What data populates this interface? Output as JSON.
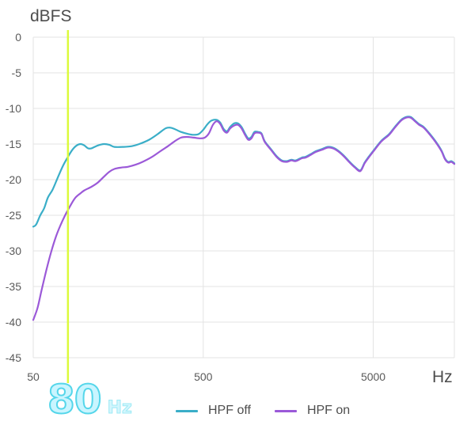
{
  "chart_data": {
    "type": "line",
    "ylabel": "dBFS",
    "xlabel": "Hz",
    "x_scale": "log",
    "xlim": [
      50,
      15000
    ],
    "ylim": [
      -45,
      0
    ],
    "x_ticks": [
      50,
      500,
      5000
    ],
    "x_tick_labels": [
      "50",
      "500",
      "5000"
    ],
    "y_ticks": [
      0,
      -5,
      -10,
      -15,
      -20,
      -25,
      -30,
      -35,
      -40,
      -45
    ],
    "y_tick_labels": [
      "0",
      "-5",
      "-10",
      "-15",
      "-20",
      "-25",
      "-30",
      "-35",
      "-40",
      "-45"
    ],
    "grid": true,
    "legend_position": "bottom",
    "marker": {
      "value": 80,
      "label": "80",
      "unit": "Hz",
      "color": "#dcfb3b"
    },
    "series": [
      {
        "name": "HPF off",
        "color": "#3aaec8",
        "points": [
          [
            50,
            -26.6
          ],
          [
            52,
            -26.3
          ],
          [
            55,
            -25
          ],
          [
            58,
            -24
          ],
          [
            61,
            -22.5
          ],
          [
            65,
            -21.4
          ],
          [
            70,
            -19.6
          ],
          [
            75,
            -18
          ],
          [
            80,
            -16.8
          ],
          [
            85,
            -15.8
          ],
          [
            90,
            -15.2
          ],
          [
            95,
            -15
          ],
          [
            100,
            -15.2
          ],
          [
            105,
            -15.6
          ],
          [
            110,
            -15.6
          ],
          [
            120,
            -15.2
          ],
          [
            130,
            -15
          ],
          [
            140,
            -15.1
          ],
          [
            150,
            -15.4
          ],
          [
            170,
            -15.4
          ],
          [
            190,
            -15.3
          ],
          [
            210,
            -15
          ],
          [
            240,
            -14.4
          ],
          [
            270,
            -13.6
          ],
          [
            300,
            -12.8
          ],
          [
            320,
            -12.7
          ],
          [
            340,
            -12.9
          ],
          [
            370,
            -13.3
          ],
          [
            410,
            -13.6
          ],
          [
            440,
            -13.7
          ],
          [
            470,
            -13.6
          ],
          [
            500,
            -13
          ],
          [
            530,
            -12.2
          ],
          [
            560,
            -11.7
          ],
          [
            600,
            -11.6
          ],
          [
            630,
            -12
          ],
          [
            660,
            -12.9
          ],
          [
            690,
            -13.2
          ],
          [
            720,
            -12.6
          ],
          [
            760,
            -12.1
          ],
          [
            800,
            -12.1
          ],
          [
            840,
            -12.6
          ],
          [
            880,
            -13.5
          ],
          [
            920,
            -14.2
          ],
          [
            960,
            -14
          ],
          [
            1000,
            -13.3
          ],
          [
            1050,
            -13.3
          ],
          [
            1100,
            -13.5
          ],
          [
            1150,
            -14.6
          ],
          [
            1250,
            -15.7
          ],
          [
            1350,
            -16.7
          ],
          [
            1450,
            -17.3
          ],
          [
            1550,
            -17.4
          ],
          [
            1650,
            -17.2
          ],
          [
            1750,
            -17.3
          ],
          [
            1900,
            -16.9
          ],
          [
            2000,
            -16.8
          ],
          [
            2150,
            -16.4
          ],
          [
            2300,
            -16
          ],
          [
            2500,
            -15.7
          ],
          [
            2700,
            -15.4
          ],
          [
            2900,
            -15.5
          ],
          [
            3100,
            -15.9
          ],
          [
            3350,
            -16.6
          ],
          [
            3600,
            -17.4
          ],
          [
            3900,
            -18.2
          ],
          [
            4200,
            -18.7
          ],
          [
            4450,
            -17.6
          ],
          [
            4700,
            -16.8
          ],
          [
            5100,
            -15.7
          ],
          [
            5600,
            -14.5
          ],
          [
            6200,
            -13.6
          ],
          [
            6700,
            -12.6
          ],
          [
            7300,
            -11.6
          ],
          [
            7800,
            -11.2
          ],
          [
            8300,
            -11.2
          ],
          [
            8800,
            -11.7
          ],
          [
            9300,
            -12.2
          ],
          [
            9900,
            -12.6
          ],
          [
            10700,
            -13.5
          ],
          [
            11700,
            -14.7
          ],
          [
            12600,
            -15.9
          ],
          [
            13200,
            -17
          ],
          [
            13800,
            -17.5
          ],
          [
            14400,
            -17.4
          ],
          [
            15000,
            -17.7
          ]
        ]
      },
      {
        "name": "HPF on",
        "color": "#9b59d8",
        "points": [
          [
            50,
            -39.7
          ],
          [
            53,
            -38
          ],
          [
            56,
            -35.5
          ],
          [
            60,
            -32.5
          ],
          [
            64,
            -30
          ],
          [
            68,
            -28
          ],
          [
            72,
            -26.5
          ],
          [
            77,
            -25
          ],
          [
            82,
            -23.8
          ],
          [
            88,
            -22.6
          ],
          [
            95,
            -21.9
          ],
          [
            100,
            -21.5
          ],
          [
            110,
            -21
          ],
          [
            120,
            -20.4
          ],
          [
            130,
            -19.6
          ],
          [
            140,
            -18.9
          ],
          [
            150,
            -18.5
          ],
          [
            165,
            -18.3
          ],
          [
            180,
            -18.2
          ],
          [
            200,
            -17.9
          ],
          [
            220,
            -17.5
          ],
          [
            250,
            -16.8
          ],
          [
            280,
            -16
          ],
          [
            310,
            -15.3
          ],
          [
            340,
            -14.6
          ],
          [
            370,
            -14.1
          ],
          [
            400,
            -14
          ],
          [
            440,
            -14.1
          ],
          [
            480,
            -14.2
          ],
          [
            510,
            -14.1
          ],
          [
            540,
            -13.5
          ],
          [
            570,
            -12.3
          ],
          [
            600,
            -11.8
          ],
          [
            630,
            -12.2
          ],
          [
            660,
            -13.1
          ],
          [
            690,
            -13.4
          ],
          [
            720,
            -12.8
          ],
          [
            760,
            -12.4
          ],
          [
            800,
            -12.3
          ],
          [
            840,
            -12.8
          ],
          [
            880,
            -13.7
          ],
          [
            920,
            -14.4
          ],
          [
            960,
            -14.2
          ],
          [
            1000,
            -13.5
          ],
          [
            1050,
            -13.4
          ],
          [
            1100,
            -13.6
          ],
          [
            1150,
            -14.7
          ],
          [
            1250,
            -15.8
          ],
          [
            1350,
            -16.8
          ],
          [
            1450,
            -17.4
          ],
          [
            1550,
            -17.5
          ],
          [
            1650,
            -17.3
          ],
          [
            1750,
            -17.4
          ],
          [
            1900,
            -17
          ],
          [
            2000,
            -16.9
          ],
          [
            2150,
            -16.5
          ],
          [
            2300,
            -16.1
          ],
          [
            2500,
            -15.8
          ],
          [
            2700,
            -15.5
          ],
          [
            2900,
            -15.6
          ],
          [
            3100,
            -16
          ],
          [
            3350,
            -16.7
          ],
          [
            3600,
            -17.5
          ],
          [
            3900,
            -18.3
          ],
          [
            4200,
            -18.8
          ],
          [
            4450,
            -17.7
          ],
          [
            4700,
            -16.9
          ],
          [
            5100,
            -15.8
          ],
          [
            5600,
            -14.6
          ],
          [
            6200,
            -13.7
          ],
          [
            6700,
            -12.7
          ],
          [
            7300,
            -11.7
          ],
          [
            7800,
            -11.3
          ],
          [
            8300,
            -11.3
          ],
          [
            8800,
            -11.8
          ],
          [
            9300,
            -12.3
          ],
          [
            9900,
            -12.7
          ],
          [
            10700,
            -13.6
          ],
          [
            11700,
            -14.8
          ],
          [
            12600,
            -16
          ],
          [
            13200,
            -17.1
          ],
          [
            13800,
            -17.6
          ],
          [
            14400,
            -17.5
          ],
          [
            15000,
            -17.8
          ]
        ]
      }
    ]
  }
}
